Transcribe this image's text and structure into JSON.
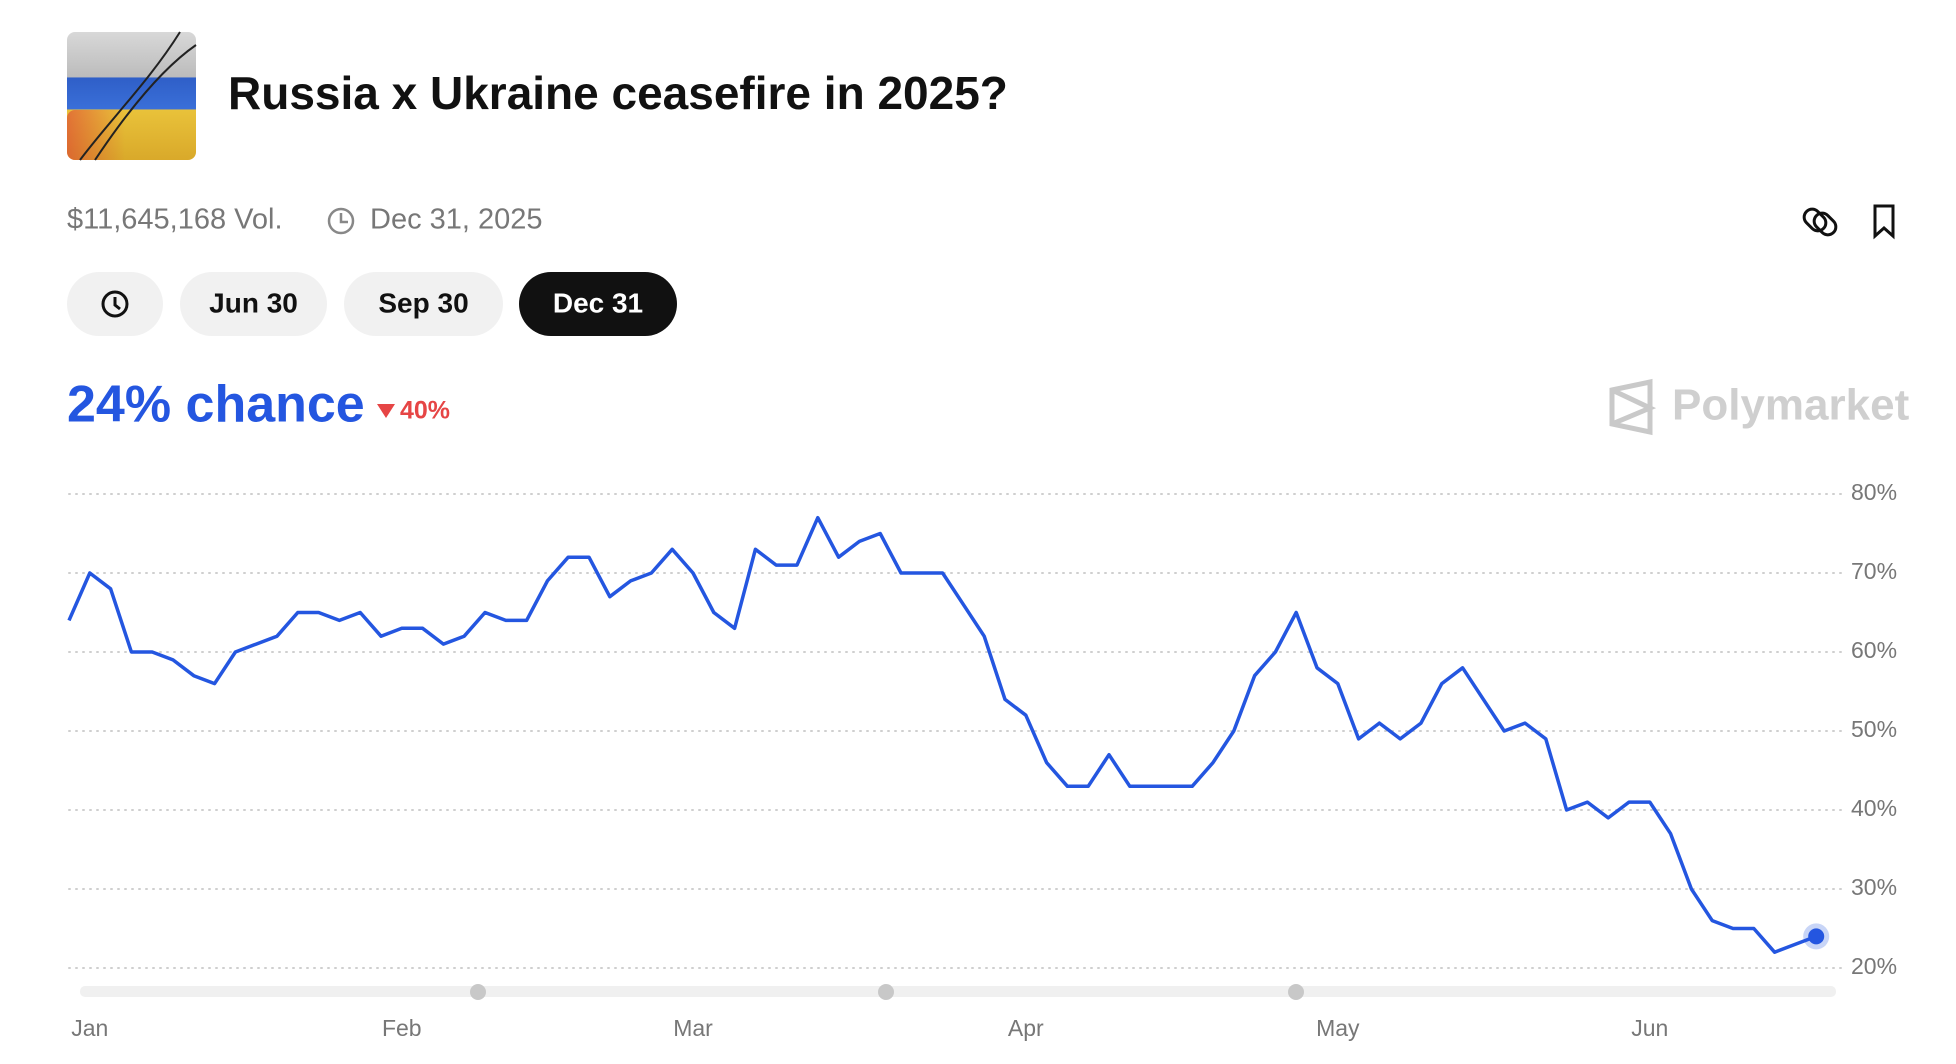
{
  "header": {
    "title": "Russia x Ukraine ceasefire in 2025?",
    "volume": "$11,645,168 Vol.",
    "end_date": "Dec 31, 2025"
  },
  "buttons": [
    "Jun 30",
    "Sep 30",
    "Dec 31"
  ],
  "chance": "24% chance",
  "change": "40%",
  "brand": "Polymarket",
  "chart_data": {
    "type": "line",
    "categories": [
      null,
      "Jan",
      null,
      null,
      null,
      null,
      null,
      null,
      null,
      null,
      null,
      null,
      null,
      null,
      null,
      null,
      "Feb",
      null,
      null,
      null,
      null,
      null,
      null,
      null,
      null,
      null,
      null,
      null,
      null,
      null,
      "Mar",
      null,
      null,
      null,
      null,
      null,
      null,
      null,
      null,
      null,
      null,
      null,
      null,
      null,
      null,
      null,
      "Apr",
      null,
      null,
      null,
      null,
      null,
      null,
      null,
      null,
      null,
      null,
      null,
      null,
      null,
      null,
      "May",
      null,
      null,
      null,
      null,
      null,
      null,
      null,
      null,
      null,
      null,
      null,
      null,
      null,
      null,
      "Jun",
      null,
      null,
      null,
      null,
      null,
      null,
      null,
      null
    ],
    "series": [
      {
        "color": "#2456e0",
        "values": [
          64,
          70,
          68,
          60,
          60,
          59,
          57,
          56,
          60,
          61,
          62,
          65,
          65,
          64,
          65,
          62,
          63,
          63,
          61,
          62,
          65,
          64,
          64,
          69,
          72,
          72,
          67,
          69,
          70,
          73,
          70,
          65,
          63,
          73,
          71,
          71,
          77,
          72,
          74,
          75,
          70,
          70,
          70,
          66,
          62,
          54,
          52,
          46,
          43,
          43,
          47,
          43,
          43,
          43,
          43,
          46,
          50,
          57,
          60,
          65,
          58,
          56,
          49,
          51,
          49,
          51,
          56,
          58,
          54,
          50,
          51,
          49,
          40,
          41,
          39,
          41,
          41,
          37,
          30,
          26,
          25,
          25,
          22,
          23,
          24
        ]
      }
    ],
    "ylim": [
      20,
      80
    ],
    "yticks": [
      {
        "value": 20,
        "label": "20%"
      },
      {
        "value": 30,
        "label": "30%"
      },
      {
        "value": 40,
        "label": "40%"
      },
      {
        "value": 50,
        "label": "50%"
      },
      {
        "value": 60,
        "label": "60%"
      },
      {
        "value": 70,
        "label": "70%"
      },
      {
        "value": 80,
        "label": "80%"
      }
    ],
    "grid": true
  }
}
